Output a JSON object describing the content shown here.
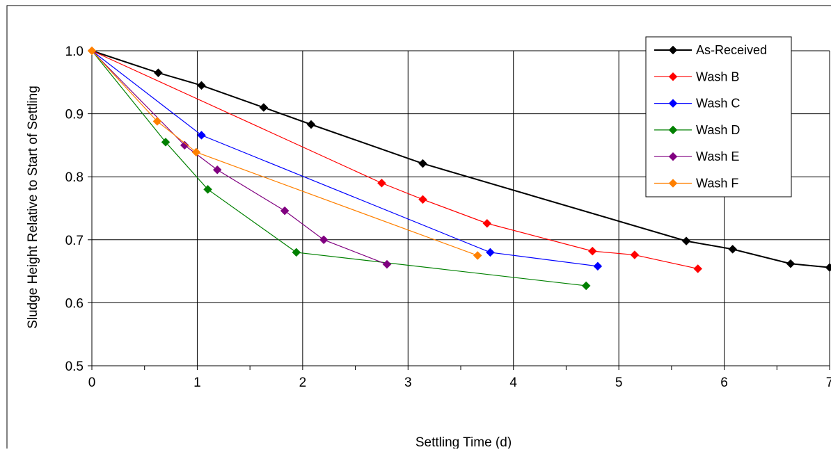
{
  "chart_data": {
    "type": "line",
    "title": "",
    "xlabel": "Settling Time (d)",
    "ylabel": "Sludge Height Relative to Start of Settling",
    "xlim": [
      0,
      7
    ],
    "ylim": [
      0.5,
      1.0
    ],
    "x_ticks": [
      "0",
      "1",
      "2",
      "3",
      "4",
      "5",
      "6",
      "7"
    ],
    "y_ticks": [
      "0.5",
      "0.6",
      "0.7",
      "0.8",
      "0.9",
      "1.0"
    ],
    "grid": true,
    "legend_position": "top-right",
    "series": [
      {
        "name": "As-Received",
        "color": "#000000",
        "x": [
          0,
          0.63,
          1.04,
          1.63,
          2.08,
          3.14,
          5.64,
          6.08,
          6.63,
          7.0
        ],
        "y": [
          1.0,
          0.965,
          0.945,
          0.91,
          0.883,
          0.821,
          0.698,
          0.685,
          0.662,
          0.656
        ]
      },
      {
        "name": "Wash B",
        "color": "#ff0000",
        "x": [
          0,
          2.75,
          3.14,
          3.75,
          4.75,
          5.15,
          5.75
        ],
        "y": [
          1.0,
          0.79,
          0.764,
          0.726,
          0.682,
          0.676,
          0.654
        ]
      },
      {
        "name": "Wash C",
        "color": "#0000ff",
        "x": [
          0,
          1.04,
          3.78,
          4.8
        ],
        "y": [
          1.0,
          0.866,
          0.68,
          0.658
        ]
      },
      {
        "name": "Wash D",
        "color": "#008000",
        "x": [
          0,
          0.7,
          1.1,
          1.94,
          4.69
        ],
        "y": [
          1.0,
          0.855,
          0.78,
          0.68,
          0.627
        ]
      },
      {
        "name": "Wash E",
        "color": "#800080",
        "x": [
          0,
          0.88,
          1.19,
          1.83,
          2.2,
          2.8
        ],
        "y": [
          1.0,
          0.85,
          0.811,
          0.746,
          0.7,
          0.661
        ]
      },
      {
        "name": "Wash F",
        "color": "#ff8000",
        "x": [
          0,
          0.62,
          0.99,
          3.66
        ],
        "y": [
          1.0,
          0.888,
          0.839,
          0.675
        ]
      }
    ]
  }
}
